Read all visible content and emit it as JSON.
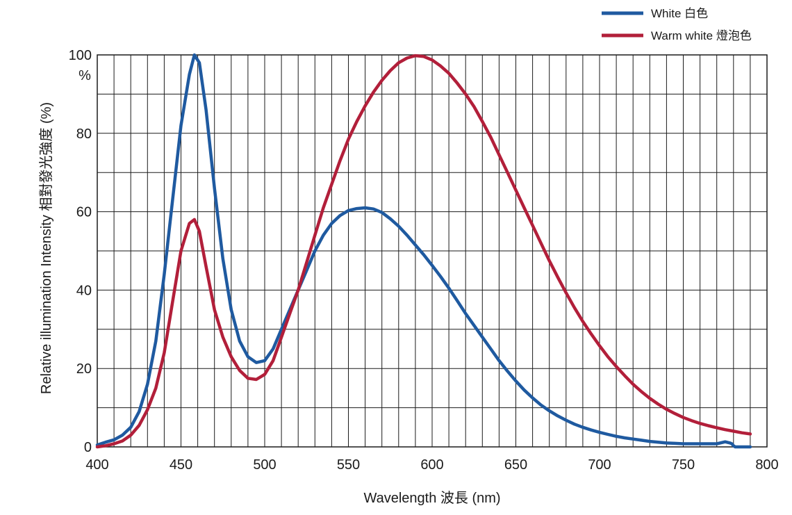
{
  "chart_data": {
    "type": "line",
    "title": "",
    "xlabel": "Wavelength 波長 (nm)",
    "ylabel": "Relative illumination Intensity 相對發光強度 (%)",
    "y_unit": "%",
    "xlim": [
      400,
      800
    ],
    "ylim": [
      0,
      100
    ],
    "x_ticks": [
      "400",
      "450",
      "500",
      "550",
      "600",
      "650",
      "700",
      "750",
      "800"
    ],
    "y_ticks": [
      "0",
      "20",
      "40",
      "60",
      "80",
      "100"
    ],
    "grid": true,
    "legend_position": "top-right",
    "series": [
      {
        "name": "White 白色",
        "color": "#1f5aa0",
        "points": [
          [
            400,
            0.5
          ],
          [
            405,
            1.2
          ],
          [
            410,
            1.8
          ],
          [
            415,
            3
          ],
          [
            420,
            5
          ],
          [
            425,
            9
          ],
          [
            430,
            16
          ],
          [
            435,
            27
          ],
          [
            440,
            44
          ],
          [
            445,
            63
          ],
          [
            450,
            82
          ],
          [
            455,
            95
          ],
          [
            458,
            100
          ],
          [
            461,
            98
          ],
          [
            465,
            86
          ],
          [
            470,
            66
          ],
          [
            475,
            48
          ],
          [
            480,
            35
          ],
          [
            485,
            27
          ],
          [
            490,
            23
          ],
          [
            495,
            21.5
          ],
          [
            500,
            22
          ],
          [
            505,
            25
          ],
          [
            510,
            30
          ],
          [
            515,
            35
          ],
          [
            520,
            40
          ],
          [
            525,
            45
          ],
          [
            530,
            50
          ],
          [
            535,
            54
          ],
          [
            540,
            57
          ],
          [
            545,
            59
          ],
          [
            550,
            60.3
          ],
          [
            555,
            60.8
          ],
          [
            560,
            61
          ],
          [
            565,
            60.7
          ],
          [
            570,
            59.8
          ],
          [
            575,
            58.2
          ],
          [
            580,
            56.3
          ],
          [
            585,
            54
          ],
          [
            590,
            51.5
          ],
          [
            595,
            49
          ],
          [
            600,
            46.3
          ],
          [
            605,
            43.5
          ],
          [
            610,
            40.5
          ],
          [
            615,
            37.3
          ],
          [
            620,
            34
          ],
          [
            625,
            31
          ],
          [
            630,
            28
          ],
          [
            635,
            25
          ],
          [
            640,
            22
          ],
          [
            645,
            19.3
          ],
          [
            650,
            16.8
          ],
          [
            655,
            14.5
          ],
          [
            660,
            12.5
          ],
          [
            665,
            10.7
          ],
          [
            670,
            9.2
          ],
          [
            675,
            7.9
          ],
          [
            680,
            6.8
          ],
          [
            685,
            5.8
          ],
          [
            690,
            5
          ],
          [
            695,
            4.3
          ],
          [
            700,
            3.7
          ],
          [
            705,
            3.2
          ],
          [
            710,
            2.7
          ],
          [
            715,
            2.3
          ],
          [
            720,
            2
          ],
          [
            725,
            1.7
          ],
          [
            730,
            1.4
          ],
          [
            735,
            1.2
          ],
          [
            740,
            1
          ],
          [
            745,
            0.9
          ],
          [
            750,
            0.8
          ],
          [
            755,
            0.8
          ],
          [
            760,
            0.8
          ],
          [
            765,
            0.8
          ],
          [
            770,
            0.8
          ],
          [
            775,
            1.3
          ],
          [
            778,
            1
          ],
          [
            779,
            0.8
          ],
          [
            780,
            0.3
          ],
          [
            781,
            0
          ],
          [
            790,
            0
          ]
        ]
      },
      {
        "name": "Warm white 燈泡色",
        "color": "#b21f3a",
        "points": [
          [
            400,
            0
          ],
          [
            405,
            0.3
          ],
          [
            410,
            0.8
          ],
          [
            415,
            1.5
          ],
          [
            420,
            3
          ],
          [
            425,
            5.5
          ],
          [
            430,
            9.5
          ],
          [
            435,
            15
          ],
          [
            440,
            24
          ],
          [
            445,
            37
          ],
          [
            450,
            50
          ],
          [
            455,
            57
          ],
          [
            458,
            58
          ],
          [
            461,
            55
          ],
          [
            465,
            46
          ],
          [
            470,
            35
          ],
          [
            475,
            28
          ],
          [
            480,
            23
          ],
          [
            485,
            19.5
          ],
          [
            490,
            17.5
          ],
          [
            495,
            17.2
          ],
          [
            500,
            18.5
          ],
          [
            505,
            22
          ],
          [
            510,
            28
          ],
          [
            515,
            34
          ],
          [
            520,
            40
          ],
          [
            525,
            47
          ],
          [
            530,
            54
          ],
          [
            535,
            61
          ],
          [
            540,
            67
          ],
          [
            545,
            73
          ],
          [
            550,
            78.5
          ],
          [
            555,
            83
          ],
          [
            560,
            87
          ],
          [
            565,
            90.5
          ],
          [
            570,
            93.5
          ],
          [
            575,
            96
          ],
          [
            580,
            98
          ],
          [
            585,
            99.2
          ],
          [
            590,
            99.8
          ],
          [
            595,
            99.6
          ],
          [
            600,
            98.7
          ],
          [
            605,
            97.2
          ],
          [
            610,
            95.3
          ],
          [
            615,
            92.8
          ],
          [
            620,
            90
          ],
          [
            625,
            86.8
          ],
          [
            630,
            83
          ],
          [
            635,
            79
          ],
          [
            640,
            74.5
          ],
          [
            645,
            70
          ],
          [
            650,
            65.5
          ],
          [
            655,
            61
          ],
          [
            660,
            56.5
          ],
          [
            665,
            52
          ],
          [
            670,
            47.5
          ],
          [
            675,
            43.3
          ],
          [
            680,
            39.3
          ],
          [
            685,
            35.5
          ],
          [
            690,
            32
          ],
          [
            695,
            28.8
          ],
          [
            700,
            25.8
          ],
          [
            705,
            23
          ],
          [
            710,
            20.5
          ],
          [
            715,
            18.2
          ],
          [
            720,
            16
          ],
          [
            725,
            14.1
          ],
          [
            730,
            12.4
          ],
          [
            735,
            10.9
          ],
          [
            740,
            9.6
          ],
          [
            745,
            8.5
          ],
          [
            750,
            7.5
          ],
          [
            755,
            6.7
          ],
          [
            760,
            6
          ],
          [
            765,
            5.4
          ],
          [
            770,
            4.9
          ],
          [
            775,
            4.4
          ],
          [
            780,
            4
          ],
          [
            785,
            3.6
          ],
          [
            790,
            3.3
          ]
        ]
      }
    ]
  }
}
